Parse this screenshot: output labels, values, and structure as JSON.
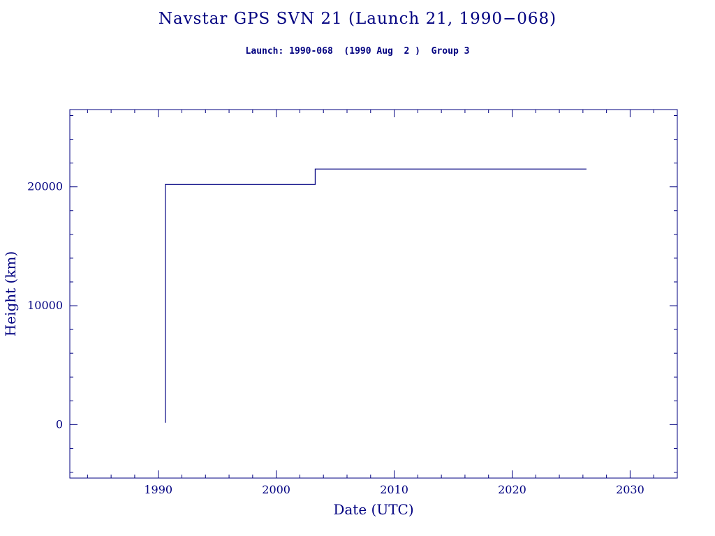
{
  "chart_data": {
    "type": "line",
    "title": "Navstar GPS SVN 21 (Launch 21, 1990−068)",
    "subtitle": "Launch: 1990-068  (1990 Aug  2 )  Group 3",
    "xlabel": "Date (UTC)",
    "ylabel": "Height (km)",
    "xlim": [
      1982.5,
      2034
    ],
    "ylim": [
      -4500,
      26500
    ],
    "x_ticks": [
      1990,
      2000,
      2010,
      2020,
      2030
    ],
    "y_ticks": [
      0,
      10000,
      20000
    ],
    "x_minor_step": 2,
    "y_minor_step": 2000,
    "x_major_multiple": 10,
    "y_major_multiple": 10000,
    "axis_color": "#000080",
    "line_color": "#000080",
    "grid": "off",
    "legend": "none",
    "series": [
      {
        "name": "height",
        "points": [
          [
            1990.6,
            150
          ],
          [
            1990.6,
            20200
          ],
          [
            2003.3,
            20200
          ],
          [
            2003.3,
            21500
          ],
          [
            2026.3,
            21500
          ]
        ]
      }
    ]
  }
}
